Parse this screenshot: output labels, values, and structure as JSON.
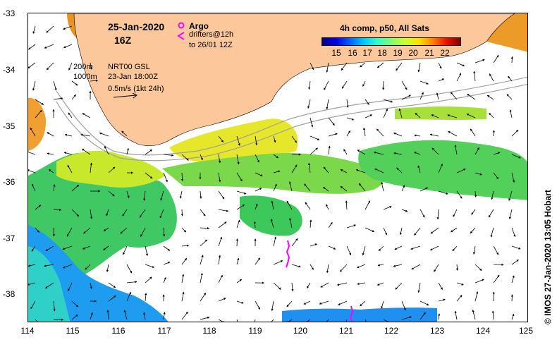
{
  "header": {
    "date": "25-Jan-2020",
    "hour": "16Z",
    "composite_title": "4h comp, p50, All Sats"
  },
  "legend": {
    "argo_label": "Argo",
    "drifter_line1": "drifters@12h",
    "drifter_line2": "to 26/01 12Z",
    "argo_color": "#ff00ff",
    "drifter_color": "#ff00ff"
  },
  "currents_info": {
    "depth_200": "200m",
    "depth_1000": "1000m",
    "source": "NRT00 GSL",
    "time": "23-Jan 18:00Z",
    "scale": "0.5m/s (1kt 24h)"
  },
  "colorbar": {
    "ticks": [
      "15",
      "16",
      "17",
      "18",
      "19",
      "20",
      "21",
      "22"
    ]
  },
  "axes": {
    "x_ticks": [
      "114",
      "115",
      "116",
      "117",
      "118",
      "119",
      "120",
      "121",
      "122",
      "123",
      "124",
      "125"
    ],
    "y_ticks": [
      "-33",
      "-34",
      "-35",
      "-36",
      "-37",
      "-38"
    ]
  },
  "map": {
    "land_color": "#fcc89b",
    "contour_color": "#a0a0a0",
    "lon_range": [
      114,
      125
    ],
    "lat_range": [
      -38.5,
      -33
    ]
  },
  "credit": "© IMOS 27-Jan-2020 13:05 Hobart"
}
